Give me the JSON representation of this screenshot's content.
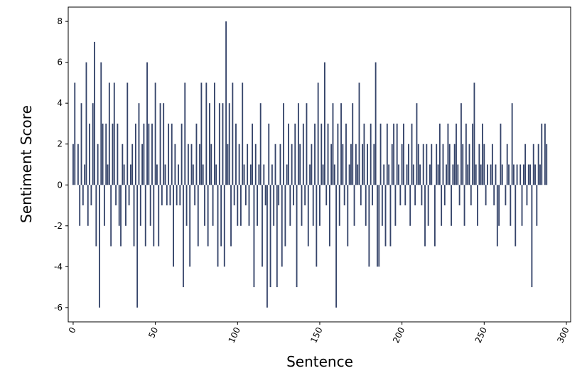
{
  "chart_data": {
    "type": "bar",
    "xlabel": "Sentence",
    "ylabel": "Sentiment Score",
    "color": "#35446a",
    "x": [
      0,
      1,
      2,
      3,
      4,
      5,
      6,
      7,
      8,
      9,
      10,
      11,
      12,
      13,
      14,
      15,
      16,
      17,
      18,
      19,
      20,
      21,
      22,
      23,
      24,
      25,
      26,
      27,
      28,
      29,
      30,
      31,
      32,
      33,
      34,
      35,
      36,
      37,
      38,
      39,
      40,
      41,
      42,
      43,
      44,
      45,
      46,
      47,
      48,
      49,
      50,
      51,
      52,
      53,
      54,
      55,
      56,
      57,
      58,
      59,
      60,
      61,
      62,
      63,
      64,
      65,
      66,
      67,
      68,
      69,
      70,
      71,
      72,
      73,
      74,
      75,
      76,
      77,
      78,
      79,
      80,
      81,
      82,
      83,
      84,
      85,
      86,
      87,
      88,
      89,
      90,
      91,
      92,
      93,
      94,
      95,
      96,
      97,
      98,
      99,
      100,
      101,
      102,
      103,
      104,
      105,
      106,
      107,
      108,
      109,
      110,
      111,
      112,
      113,
      114,
      115,
      116,
      117,
      118,
      119,
      120,
      121,
      122,
      123,
      124,
      125,
      126,
      127,
      128,
      129,
      130,
      131,
      132,
      133,
      134,
      135,
      136,
      137,
      138,
      139,
      140,
      141,
      142,
      143,
      144,
      145,
      146,
      147,
      148,
      149,
      150,
      151,
      152,
      153,
      154,
      155,
      156,
      157,
      158,
      159,
      160,
      161,
      162,
      163,
      164,
      165,
      166,
      167,
      168,
      169,
      170,
      171,
      172,
      173,
      174,
      175,
      176,
      177,
      178,
      179,
      180,
      181,
      182,
      183,
      184,
      185,
      186,
      187,
      188,
      189,
      190,
      191,
      192,
      193,
      194,
      195,
      196,
      197,
      198,
      199,
      200,
      201,
      202,
      203,
      204,
      205,
      206,
      207,
      208,
      209,
      210,
      211,
      212,
      213,
      214,
      215,
      216,
      217,
      218,
      219,
      220,
      221,
      222,
      223,
      224,
      225,
      226,
      227,
      228,
      229,
      230,
      231,
      232,
      233,
      234,
      235,
      236,
      237,
      238,
      239,
      240,
      241,
      242,
      243,
      244,
      245,
      246,
      247,
      248,
      249,
      250,
      251,
      252,
      253,
      254,
      255,
      256,
      257,
      258,
      259,
      260,
      261,
      262,
      263,
      264,
      265,
      266,
      267,
      268,
      269,
      270,
      271,
      272,
      273,
      274,
      275,
      276,
      277,
      278,
      279,
      280,
      281,
      282,
      283,
      284,
      285,
      286,
      287,
      288
    ],
    "values": [
      2,
      5,
      0,
      2,
      -2,
      4,
      -1,
      1,
      6,
      -2,
      3,
      -1,
      4,
      7,
      -3,
      2,
      -6,
      6,
      3,
      -2,
      3,
      1,
      5,
      -3,
      3,
      5,
      -1,
      3,
      -2,
      -3,
      2,
      1,
      -2,
      5,
      -1,
      1,
      2,
      -3,
      3,
      -6,
      4,
      -2,
      2,
      3,
      -3,
      6,
      3,
      -2,
      3,
      -3,
      5,
      1,
      -3,
      4,
      -1,
      4,
      1,
      -1,
      3,
      -1,
      3,
      -4,
      2,
      -1,
      1,
      -1,
      3,
      -5,
      5,
      -2,
      2,
      -4,
      2,
      1,
      -1,
      3,
      -3,
      2,
      5,
      1,
      -2,
      5,
      -3,
      4,
      2,
      -2,
      5,
      1,
      -4,
      4,
      -3,
      4,
      -4,
      8,
      2,
      4,
      -3,
      5,
      -1,
      3,
      -2,
      2,
      -2,
      5,
      1,
      -1,
      2,
      -2,
      1,
      3,
      -5,
      2,
      -2,
      1,
      4,
      -4,
      1,
      -1,
      -6,
      3,
      -5,
      1,
      -2,
      2,
      -5,
      -1,
      2,
      -4,
      4,
      -3,
      1,
      3,
      -2,
      2,
      -1,
      3,
      -5,
      4,
      2,
      -2,
      3,
      -1,
      4,
      -3,
      1,
      2,
      -2,
      3,
      -4,
      5,
      -2,
      3,
      1,
      6,
      -1,
      3,
      -3,
      2,
      4,
      1,
      -6,
      3,
      -2,
      4,
      2,
      -1,
      3,
      -3,
      1,
      2,
      4,
      -2,
      2,
      1,
      5,
      -1,
      2,
      3,
      -2,
      2,
      -4,
      3,
      -1,
      2,
      6,
      -4,
      -4,
      3,
      -2,
      1,
      -3,
      3,
      1,
      -3,
      2,
      3,
      -2,
      3,
      1,
      -1,
      2,
      3,
      -1,
      1,
      2,
      -2,
      3,
      1,
      -1,
      4,
      2,
      1,
      -1,
      2,
      -3,
      2,
      -2,
      1,
      2,
      0,
      -3,
      2,
      1,
      3,
      -2,
      2,
      -1,
      1,
      3,
      2,
      -2,
      1,
      2,
      3,
      1,
      -1,
      4,
      2,
      -2,
      3,
      1,
      2,
      -1,
      3,
      5,
      1,
      -2,
      2,
      1,
      3,
      2,
      -1,
      1,
      0,
      1,
      2,
      -1,
      1,
      -3,
      -2,
      3,
      1,
      0,
      -1,
      2,
      1,
      -2,
      4,
      1,
      -3,
      1,
      0,
      1,
      -2,
      1,
      2,
      -1,
      1,
      1,
      -5,
      2,
      1,
      -2,
      2,
      1,
      3,
      0,
      3,
      2
    ],
    "xlim": [
      -3,
      302.6
    ],
    "xticks": [
      0,
      50,
      100,
      150,
      200,
      250,
      300
    ],
    "ylim": [
      -6.7,
      8.7
    ],
    "yticks": [
      -6,
      -4,
      -2,
      0,
      2,
      4,
      6,
      8
    ]
  }
}
